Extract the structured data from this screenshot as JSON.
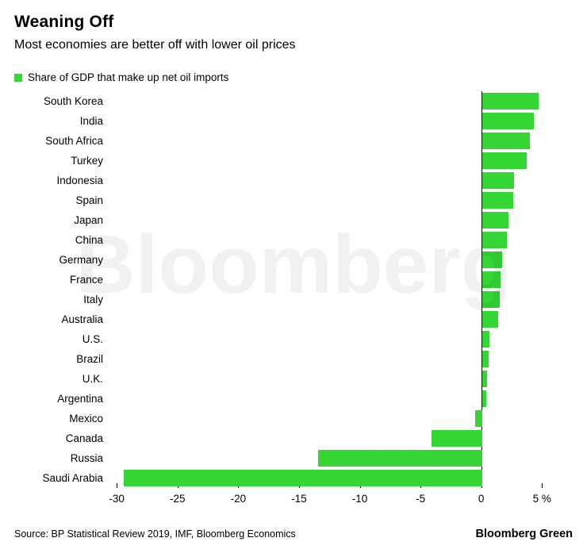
{
  "header": {
    "title": "Weaning Off",
    "subtitle": "Most economies are better off with lower oil prices"
  },
  "legend": {
    "label": "Share of GDP that make up net oil imports"
  },
  "colors": {
    "bar": "#33d633",
    "axis_line": "#000000",
    "watermark": "#000000"
  },
  "watermark": {
    "text": "Bloomberg"
  },
  "chart_data": {
    "type": "bar",
    "orientation": "horizontal",
    "title": "Weaning Off",
    "subtitle": "Most economies are better off with lower oil prices",
    "series_label": "Share of GDP that make up net oil imports",
    "categories": [
      "South Korea",
      "India",
      "South Africa",
      "Turkey",
      "Indonesia",
      "Spain",
      "Japan",
      "China",
      "Germany",
      "France",
      "Italy",
      "Australia",
      "U.S.",
      "Brazil",
      "U.K.",
      "Argentina",
      "Mexico",
      "Canada",
      "Russia",
      "Saudi Arabia"
    ],
    "values": [
      4.6,
      4.2,
      3.9,
      3.6,
      2.6,
      2.5,
      2.1,
      2.0,
      1.6,
      1.5,
      1.4,
      1.3,
      0.6,
      0.5,
      0.4,
      0.3,
      -0.6,
      -4.2,
      -13.5,
      -29.4
    ],
    "unit": "%",
    "xlim": [
      -30.6,
      7.4
    ],
    "xticks": [
      -30,
      -25,
      -20,
      -15,
      -10,
      -5,
      0,
      5
    ],
    "xtick_labels": [
      "-30",
      "-25",
      "-20",
      "-15",
      "-10",
      "-5",
      "0",
      "5 %"
    ],
    "grid": false,
    "legend_position": "top-left"
  },
  "source": {
    "text": "Source: BP Statistical Review 2019, IMF, Bloomberg Economics"
  },
  "brand": {
    "text": "Bloomberg Green"
  }
}
